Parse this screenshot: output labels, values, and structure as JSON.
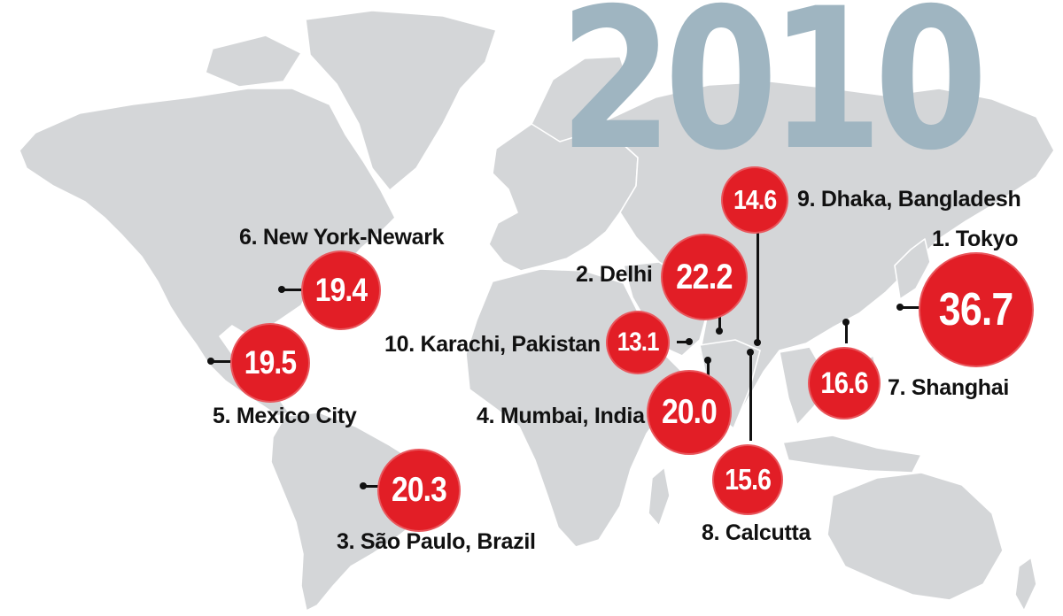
{
  "title": {
    "year": "2010"
  },
  "colors": {
    "bubble": "#e21e26",
    "year_text": "#9fb5c1",
    "land": "#d4d6d8",
    "label_text": "#111111"
  },
  "cities": [
    {
      "rank": "1.",
      "name": "Tokyo",
      "label": "1. Tokyo",
      "value": "36.7"
    },
    {
      "rank": "2.",
      "name": "Delhi",
      "label": "2. Delhi",
      "value": "22.2"
    },
    {
      "rank": "3.",
      "name": "São Paulo, Brazil",
      "label": "3. São Paulo, Brazil",
      "value": "20.3"
    },
    {
      "rank": "4.",
      "name": "Mumbai, India",
      "label": "4. Mumbai, India",
      "value": "20.0"
    },
    {
      "rank": "5.",
      "name": "Mexico City",
      "label": "5. Mexico City",
      "value": "19.5"
    },
    {
      "rank": "6.",
      "name": "New York-Newark",
      "label": "6. New York-Newark",
      "value": "19.4"
    },
    {
      "rank": "7.",
      "name": "Shanghai",
      "label": "7. Shanghai",
      "value": "16.6"
    },
    {
      "rank": "8.",
      "name": "Calcutta",
      "label": "8. Calcutta",
      "value": "15.6"
    },
    {
      "rank": "9.",
      "name": "Dhaka, Bangladesh",
      "label": "9. Dhaka, Bangladesh",
      "value": "14.6"
    },
    {
      "rank": "10.",
      "name": "Karachi, Pakistan",
      "label": "10. Karachi, Pakistan",
      "value": "13.1"
    }
  ]
}
